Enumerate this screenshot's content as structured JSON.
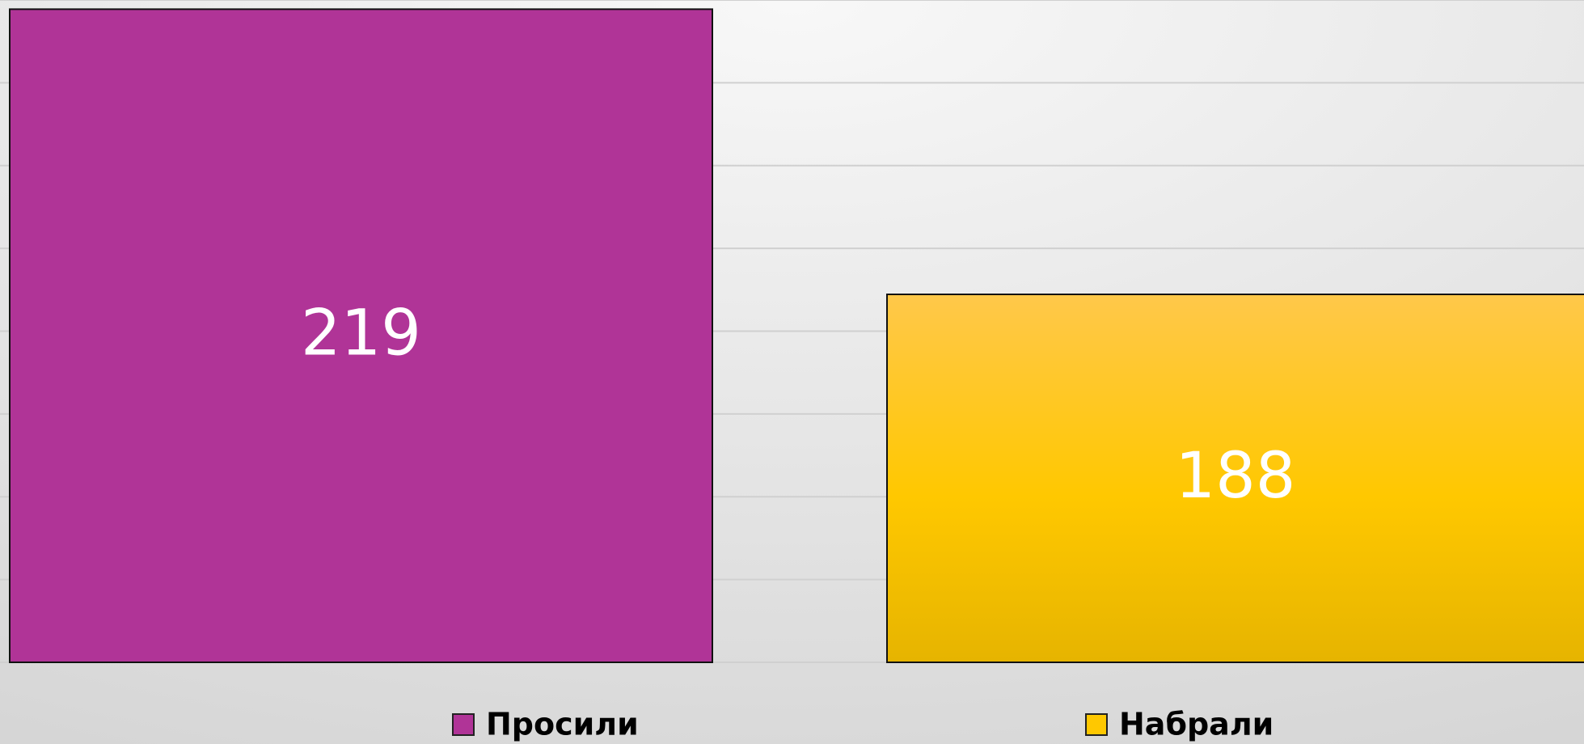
{
  "chart_data": {
    "type": "bar",
    "series": [
      {
        "name": "Просили",
        "color": "#b03497",
        "values": [
          219
        ]
      },
      {
        "name": "Набрали",
        "color": "#ffc800",
        "values": [
          188
        ]
      }
    ],
    "ylim": [
      148,
      220
    ],
    "yticks": [
      148,
      157,
      166,
      175,
      184,
      193,
      202,
      211,
      220
    ],
    "grid": true
  }
}
